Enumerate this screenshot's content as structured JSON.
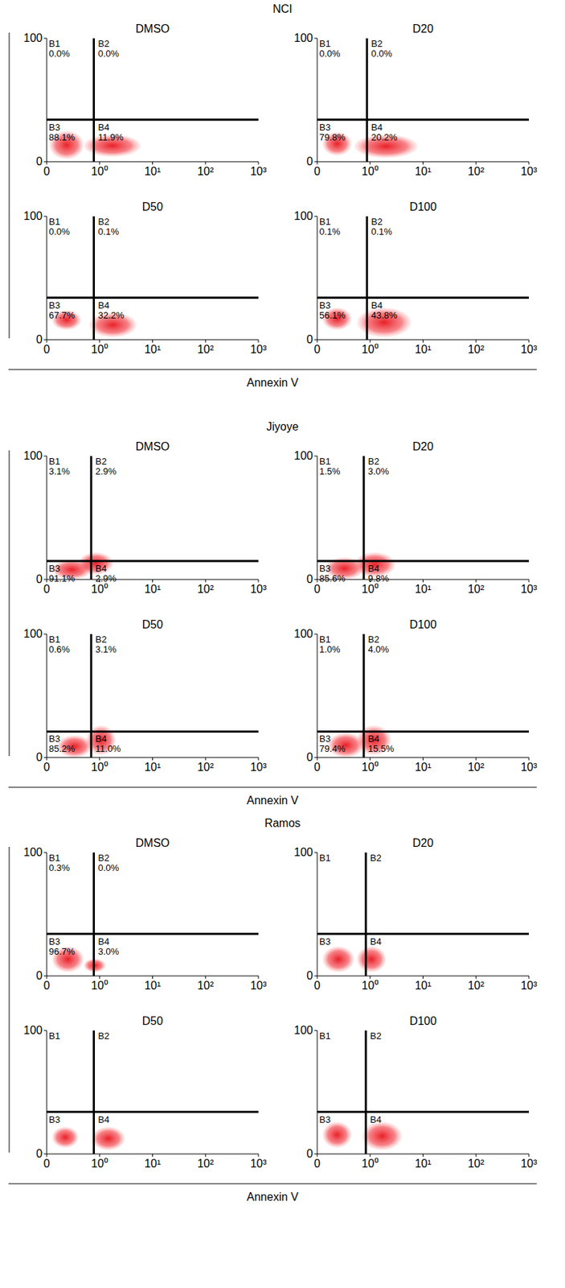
{
  "groups": [
    {
      "title": "NCI",
      "x_label": "Annexin V"
    },
    {
      "title": "Jiyoye",
      "x_label": "Annexin V"
    },
    {
      "title": "Ramos",
      "x_label": "Annexin V"
    }
  ],
  "chart_data": [
    {
      "type": "scatter",
      "title": "DMSO",
      "xlim": [
        0,
        1000
      ],
      "xticks": [
        0,
        {
          "value": 1,
          "label": "10⁰"
        },
        {
          "value": 10,
          "label": "10¹"
        },
        {
          "value": 100,
          "label": "10²"
        },
        {
          "value": 1000,
          "label": "10³"
        }
      ],
      "ylim": [
        0,
        100
      ],
      "yticks": [
        0,
        100
      ],
      "gate_x": 0.89,
      "gate_y": 34,
      "quadrants": [
        {
          "name": "B1",
          "value": 0.0,
          "label": "0.0%"
        },
        {
          "name": "B2",
          "value": 0.0,
          "label": "0.0%"
        },
        {
          "name": "B3",
          "value": 88.1,
          "label": "88.1%"
        },
        {
          "name": "B4",
          "value": 11.9,
          "label": "11.9%"
        }
      ],
      "populations": [
        {
          "x": [
            0.05,
            0.7
          ],
          "y": [
            2,
            25
          ]
        },
        {
          "x": [
            0.7,
            6
          ],
          "y": [
            4,
            22
          ]
        }
      ]
    },
    {
      "type": "scatter",
      "title": "D20",
      "xlim": [
        0,
        1000
      ],
      "xticks": [
        0,
        {
          "value": 1,
          "label": "10⁰"
        },
        {
          "value": 10,
          "label": "10¹"
        },
        {
          "value": 100,
          "label": "10²"
        },
        {
          "value": 1000,
          "label": "10³"
        }
      ],
      "ylim": [
        0,
        100
      ],
      "yticks": [
        0,
        100
      ],
      "gate_x": 0.94,
      "gate_y": 34,
      "quadrants": [
        {
          "name": "B1",
          "value": 0.0,
          "label": "0.0%"
        },
        {
          "name": "B2",
          "value": 0.0,
          "label": "0.0%"
        },
        {
          "name": "B3",
          "value": 79.8,
          "label": "79.8%"
        },
        {
          "name": "B4",
          "value": 20.2,
          "label": "20.2%"
        }
      ],
      "populations": [
        {
          "x": [
            0.1,
            0.65
          ],
          "y": [
            5,
            24
          ]
        },
        {
          "x": [
            0.7,
            8
          ],
          "y": [
            3,
            22
          ]
        }
      ]
    },
    {
      "type": "scatter",
      "title": "D50",
      "xlim": [
        0,
        1000
      ],
      "xticks": [
        0,
        {
          "value": 1,
          "label": "10⁰"
        },
        {
          "value": 10,
          "label": "10¹"
        },
        {
          "value": 100,
          "label": "10²"
        },
        {
          "value": 1000,
          "label": "10³"
        }
      ],
      "ylim": [
        0,
        100
      ],
      "yticks": [
        0,
        100
      ],
      "gate_x": 0.89,
      "gate_y": 34,
      "quadrants": [
        {
          "name": "B1",
          "value": 0.0,
          "label": "0.0%"
        },
        {
          "name": "B2",
          "value": 0.1,
          "label": "0.1%"
        },
        {
          "name": "B3",
          "value": 67.7,
          "label": "67.7%"
        },
        {
          "name": "B4",
          "value": 32.2,
          "label": "32.2%"
        }
      ],
      "populations": [
        {
          "x": [
            0.1,
            0.65
          ],
          "y": [
            8,
            24
          ]
        },
        {
          "x": [
            0.8,
            5
          ],
          "y": [
            2,
            22
          ]
        }
      ]
    },
    {
      "type": "scatter",
      "title": "D100",
      "xlim": [
        0,
        1000
      ],
      "xticks": [
        0,
        {
          "value": 1,
          "label": "10⁰"
        },
        {
          "value": 10,
          "label": "10¹"
        },
        {
          "value": 100,
          "label": "10²"
        },
        {
          "value": 1000,
          "label": "10³"
        }
      ],
      "ylim": [
        0,
        100
      ],
      "yticks": [
        0,
        100
      ],
      "gate_x": 0.94,
      "gate_y": 34,
      "quadrants": [
        {
          "name": "B1",
          "value": 0.1,
          "label": "0.1%"
        },
        {
          "name": "B2",
          "value": 0.1,
          "label": "0.1%"
        },
        {
          "name": "B3",
          "value": 56.1,
          "label": "56.1%"
        },
        {
          "name": "B4",
          "value": 43.8,
          "label": "43.8%"
        }
      ],
      "populations": [
        {
          "x": [
            0.1,
            0.65
          ],
          "y": [
            8,
            26
          ]
        },
        {
          "x": [
            0.75,
            6
          ],
          "y": [
            2,
            26
          ]
        }
      ]
    },
    {
      "type": "scatter",
      "title": "DMSO",
      "xlim": [
        0,
        1000
      ],
      "xticks": [
        0,
        {
          "value": 1,
          "label": "10⁰"
        },
        {
          "value": 10,
          "label": "10¹"
        },
        {
          "value": 100,
          "label": "10²"
        },
        {
          "value": 1000,
          "label": "10³"
        }
      ],
      "ylim": [
        0,
        100
      ],
      "yticks": [
        0,
        100
      ],
      "gate_x": 0.84,
      "gate_y": 15,
      "quadrants": [
        {
          "name": "B1",
          "value": 3.1,
          "label": "3.1%"
        },
        {
          "name": "B2",
          "value": 2.9,
          "label": "2.9%"
        },
        {
          "name": "B3",
          "value": 91.1,
          "label": "91.1%"
        },
        {
          "name": "B4",
          "value": 2.9,
          "label": "2.9%"
        }
      ],
      "populations": [
        {
          "x": [
            0.1,
            0.85
          ],
          "y": [
            0,
            16
          ]
        },
        {
          "x": [
            0.6,
            1.8
          ],
          "y": [
            4,
            22
          ]
        }
      ]
    },
    {
      "type": "scatter",
      "title": "D20",
      "xlim": [
        0,
        1000
      ],
      "xticks": [
        0,
        {
          "value": 1,
          "label": "10⁰"
        },
        {
          "value": 10,
          "label": "10¹"
        },
        {
          "value": 100,
          "label": "10²"
        },
        {
          "value": 1000,
          "label": "10³"
        }
      ],
      "ylim": [
        0,
        100
      ],
      "yticks": [
        0,
        100
      ],
      "gate_x": 0.88,
      "gate_y": 15,
      "quadrants": [
        {
          "name": "B1",
          "value": 1.5,
          "label": "1.5%"
        },
        {
          "name": "B2",
          "value": 3.0,
          "label": "3.0%"
        },
        {
          "name": "B3",
          "value": 85.6,
          "label": "85.6%"
        },
        {
          "name": "B4",
          "value": 9.8,
          "label": "9.8%"
        }
      ],
      "populations": [
        {
          "x": [
            0.15,
            0.88
          ],
          "y": [
            0,
            18
          ]
        },
        {
          "x": [
            0.7,
            3
          ],
          "y": [
            2,
            22
          ]
        }
      ]
    },
    {
      "type": "scatter",
      "title": "D50",
      "xlim": [
        0,
        1000
      ],
      "xticks": [
        0,
        {
          "value": 1,
          "label": "10⁰"
        },
        {
          "value": 10,
          "label": "10¹"
        },
        {
          "value": 100,
          "label": "10²"
        },
        {
          "value": 1000,
          "label": "10³"
        }
      ],
      "ylim": [
        0,
        100
      ],
      "yticks": [
        0,
        100
      ],
      "gate_x": 0.84,
      "gate_y": 21,
      "quadrants": [
        {
          "name": "B1",
          "value": 0.6,
          "label": "0.6%"
        },
        {
          "name": "B2",
          "value": 3.1,
          "label": "3.1%"
        },
        {
          "name": "B3",
          "value": 85.2,
          "label": "85.2%"
        },
        {
          "name": "B4",
          "value": 11.0,
          "label": "11.0%"
        }
      ],
      "populations": [
        {
          "x": [
            0.2,
            0.85
          ],
          "y": [
            0,
            18
          ]
        },
        {
          "x": [
            0.75,
            2
          ],
          "y": [
            2,
            26
          ]
        }
      ]
    },
    {
      "type": "scatter",
      "title": "D100",
      "xlim": [
        0,
        1000
      ],
      "xticks": [
        0,
        {
          "value": 1,
          "label": "10⁰"
        },
        {
          "value": 10,
          "label": "10¹"
        },
        {
          "value": 100,
          "label": "10²"
        },
        {
          "value": 1000,
          "label": "10³"
        }
      ],
      "ylim": [
        0,
        100
      ],
      "yticks": [
        0,
        100
      ],
      "gate_x": 0.88,
      "gate_y": 21,
      "quadrants": [
        {
          "name": "B1",
          "value": 1.0,
          "label": "1.0%"
        },
        {
          "name": "B2",
          "value": 4.0,
          "label": "4.0%"
        },
        {
          "name": "B3",
          "value": 79.4,
          "label": "79.4%"
        },
        {
          "name": "B4",
          "value": 15.5,
          "label": "15.5%"
        }
      ],
      "populations": [
        {
          "x": [
            0.2,
            0.88
          ],
          "y": [
            0,
            20
          ]
        },
        {
          "x": [
            0.75,
            2.5
          ],
          "y": [
            2,
            26
          ]
        }
      ]
    },
    {
      "type": "scatter",
      "title": "DMSO",
      "xlim": [
        0,
        1000
      ],
      "xticks": [
        0,
        {
          "value": 1,
          "label": "10⁰"
        },
        {
          "value": 10,
          "label": "10¹"
        },
        {
          "value": 100,
          "label": "10²"
        },
        {
          "value": 1000,
          "label": "10³"
        }
      ],
      "ylim": [
        0,
        100
      ],
      "yticks": [
        0,
        100
      ],
      "gate_x": 0.89,
      "gate_y": 34,
      "quadrants": [
        {
          "name": "B1",
          "value": 0.3,
          "label": "0.3%"
        },
        {
          "name": "B2",
          "value": 0.0,
          "label": "0.0%"
        },
        {
          "name": "B3",
          "value": 96.7,
          "label": "96.7%"
        },
        {
          "name": "B4",
          "value": 3.0,
          "label": "3.0%"
        }
      ],
      "populations": [
        {
          "x": [
            0.1,
            0.7
          ],
          "y": [
            3,
            24
          ]
        },
        {
          "x": [
            0.7,
            1.3
          ],
          "y": [
            3,
            14
          ]
        }
      ]
    },
    {
      "type": "scatter",
      "title": "D20",
      "xlim": [
        0,
        1000
      ],
      "xticks": [
        0,
        {
          "value": 1,
          "label": "10⁰"
        },
        {
          "value": 10,
          "label": "10¹"
        },
        {
          "value": 100,
          "label": "10²"
        },
        {
          "value": 1000,
          "label": "10³"
        }
      ],
      "ylim": [
        0,
        100
      ],
      "yticks": [
        0,
        100
      ],
      "gate_x": 0.92,
      "gate_y": 34,
      "quadrants": [
        {
          "name": "B1"
        },
        {
          "name": "B2"
        },
        {
          "name": "B3"
        },
        {
          "name": "B4"
        }
      ],
      "populations": [
        {
          "x": [
            0.1,
            0.7
          ],
          "y": [
            3,
            24
          ]
        },
        {
          "x": [
            0.75,
            2
          ],
          "y": [
            3,
            24
          ]
        }
      ]
    },
    {
      "type": "scatter",
      "title": "D50",
      "xlim": [
        0,
        1000
      ],
      "xticks": [
        0,
        {
          "value": 1,
          "label": "10⁰"
        },
        {
          "value": 10,
          "label": "10¹"
        },
        {
          "value": 100,
          "label": "10²"
        },
        {
          "value": 1000,
          "label": "10³"
        }
      ],
      "ylim": [
        0,
        100
      ],
      "yticks": [
        0,
        100
      ],
      "gate_x": 0.89,
      "gate_y": 34,
      "quadrants": [
        {
          "name": "B1"
        },
        {
          "name": "B2"
        },
        {
          "name": "B3"
        },
        {
          "name": "B4"
        }
      ],
      "populations": [
        {
          "x": [
            0.1,
            0.6
          ],
          "y": [
            5,
            22
          ]
        },
        {
          "x": [
            0.85,
            3
          ],
          "y": [
            3,
            22
          ]
        }
      ]
    },
    {
      "type": "scatter",
      "title": "D100",
      "xlim": [
        0,
        1000
      ],
      "xticks": [
        0,
        {
          "value": 1,
          "label": "10⁰"
        },
        {
          "value": 10,
          "label": "10¹"
        },
        {
          "value": 100,
          "label": "10²"
        },
        {
          "value": 1000,
          "label": "10³"
        }
      ],
      "ylim": [
        0,
        100
      ],
      "yticks": [
        0,
        100
      ],
      "gate_x": 0.92,
      "gate_y": 34,
      "quadrants": [
        {
          "name": "B1"
        },
        {
          "name": "B2"
        },
        {
          "name": "B3"
        },
        {
          "name": "B4"
        }
      ],
      "populations": [
        {
          "x": [
            0.1,
            0.65
          ],
          "y": [
            5,
            26
          ]
        },
        {
          "x": [
            0.85,
            4
          ],
          "y": [
            3,
            26
          ]
        }
      ]
    }
  ]
}
